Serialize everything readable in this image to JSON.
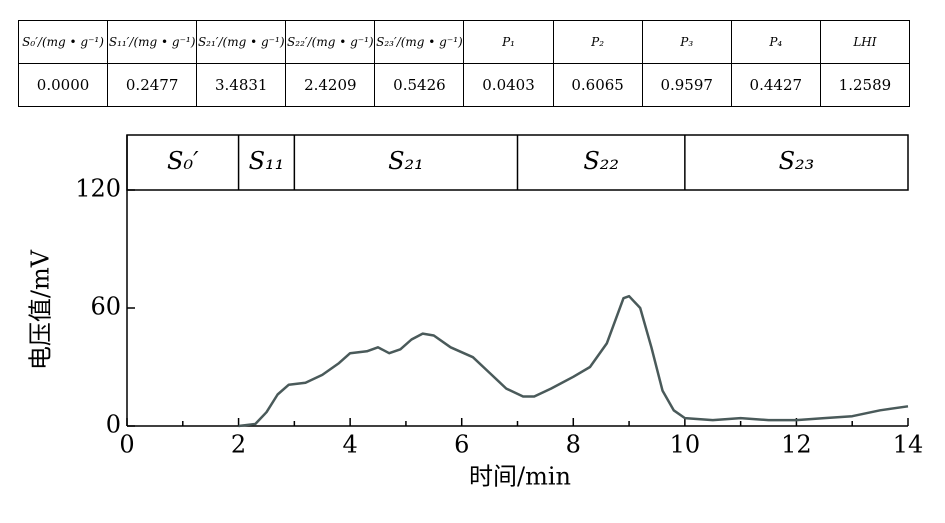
{
  "table": {
    "header": [
      "S₀′/(mg • g⁻¹)",
      "S₁₁′/(mg • g⁻¹)",
      "S₂₁′/(mg • g⁻¹)",
      "S₂₂′/(mg • g⁻¹)",
      "S₂₃′/(mg • g⁻¹)",
      "P₁",
      "P₂",
      "P₃",
      "P₄",
      "LHI"
    ],
    "rows": [
      [
        "0.0000",
        "0.2477",
        "3.4831",
        "2.4209",
        "0.5426",
        "0.0403",
        "0.6065",
        "0.9597",
        "0.4427",
        "1.2589"
      ]
    ]
  },
  "chart_data": {
    "type": "line",
    "xlabel": "时间/min",
    "ylabel": "电压值/mV",
    "color": "#4a5a5a",
    "x": [
      2.0,
      2.3,
      2.5,
      2.7,
      2.9,
      3.2,
      3.5,
      3.8,
      4.0,
      4.3,
      4.5,
      4.7,
      4.9,
      5.1,
      5.3,
      5.5,
      5.8,
      6.2,
      6.5,
      6.8,
      7.1,
      7.3,
      7.6,
      8.0,
      8.3,
      8.6,
      8.9,
      9.0,
      9.2,
      9.4,
      9.6,
      9.8,
      10.0,
      10.5,
      11.0,
      11.5,
      12.0,
      12.5,
      13.0,
      13.5,
      14.0
    ],
    "values": [
      0,
      1,
      7,
      16,
      21,
      22,
      26,
      32,
      37,
      38,
      40,
      37,
      39,
      44,
      47,
      46,
      40,
      35,
      27,
      19,
      15,
      15,
      19,
      25,
      30,
      42,
      65,
      66,
      60,
      40,
      18,
      8,
      4,
      3,
      4,
      3,
      3,
      4,
      5,
      8,
      10
    ],
    "xlim": [
      0,
      14
    ],
    "ylim": [
      0,
      120
    ],
    "xticks": [
      0,
      2,
      4,
      6,
      8,
      10,
      12,
      14
    ],
    "xminor": [
      1,
      3,
      5,
      7,
      9,
      11,
      13
    ],
    "yticks": [
      0,
      60,
      120
    ],
    "regions": [
      {
        "label": "S₀′",
        "start": 0,
        "end": 2
      },
      {
        "label": "S₁₁",
        "start": 2,
        "end": 3
      },
      {
        "label": "S₂₁",
        "start": 3,
        "end": 7
      },
      {
        "label": "S₂₂",
        "start": 7,
        "end": 10
      },
      {
        "label": "S₂₃",
        "start": 10,
        "end": 14
      }
    ]
  }
}
